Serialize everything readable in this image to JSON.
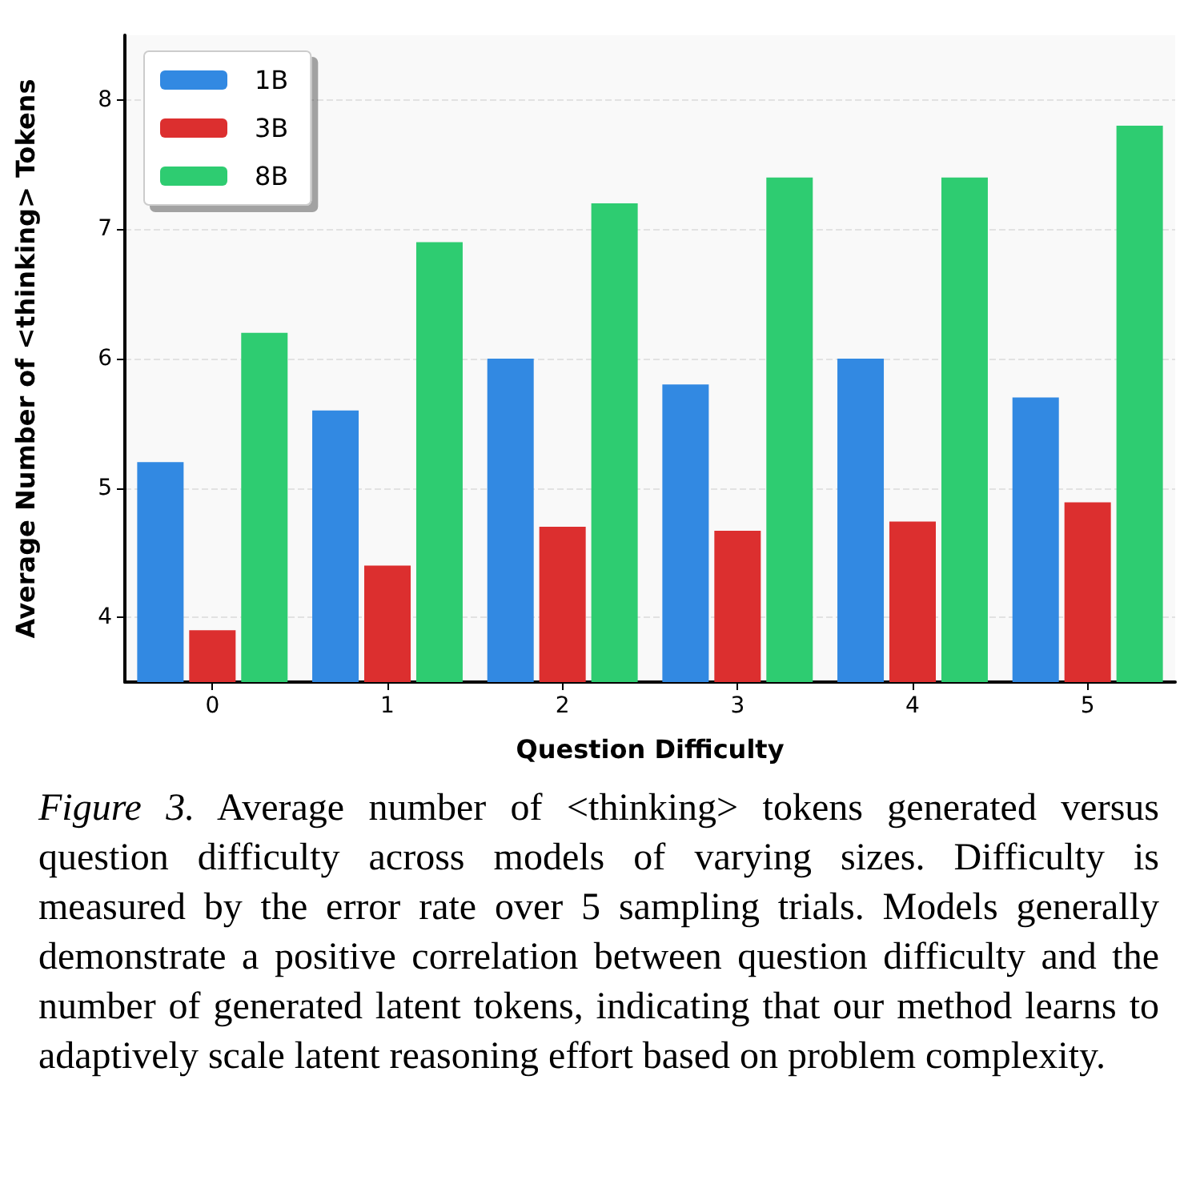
{
  "chart_data": {
    "type": "bar",
    "xlabel": "Question Difficulty",
    "ylabel": "Average Number of <thinking> Tokens",
    "categories": [
      "0",
      "1",
      "2",
      "3",
      "4",
      "5"
    ],
    "series": [
      {
        "name": "1B",
        "color": "#3289e2",
        "values": [
          5.2,
          5.6,
          6.0,
          5.8,
          6.0,
          5.7
        ]
      },
      {
        "name": "3B",
        "color": "#dc2f2f",
        "values": [
          3.9,
          4.4,
          4.7,
          4.67,
          4.74,
          4.89
        ]
      },
      {
        "name": "8B",
        "color": "#2ecc71",
        "values": [
          6.2,
          6.9,
          7.2,
          7.4,
          7.4,
          7.8
        ]
      }
    ],
    "ylim": [
      3.5,
      8.5
    ],
    "yticks": [
      4,
      5,
      6,
      7,
      8
    ],
    "grid": "y",
    "legend": "top left",
    "annotations": [
      "Figure 3. Average number of <thinking> tokens generated versus question difficulty across models of varying sizes. Difficulty is measured by the error rate over 5 sampling trials. Models generally demonstrate a positive correlation between question difficulty and the number of generated latent tokens, indicating that our method learns to adaptively scale latent reasoning effort based on problem complexity."
    ]
  }
}
